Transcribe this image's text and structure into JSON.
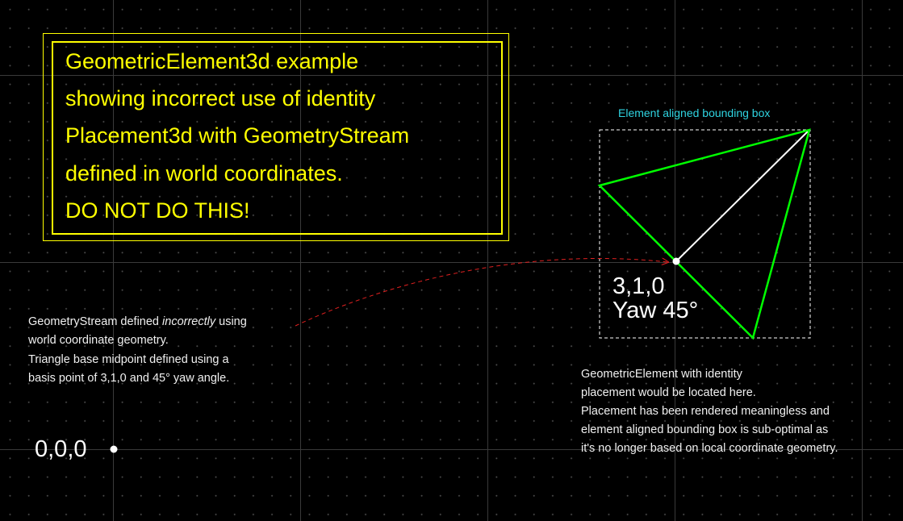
{
  "title": {
    "lines": [
      "GeometricElement3d example",
      "showing incorrect use of identity",
      "Placement3d with GeometryStream",
      "defined in world coordinates.",
      "DO NOT DO THIS!"
    ]
  },
  "bbox_caption": "Element aligned bounding box",
  "placement_label": {
    "coords": "3,1,0",
    "yaw": "Yaw 45°"
  },
  "origin_label": "0,0,0",
  "left_note": {
    "line1_pre": "GeometryStream defined ",
    "line1_em": "incorrectly",
    "line1_post": " using",
    "line2": "world coordinate geometry.",
    "line3": "Triangle base midpoint defined using a",
    "line4": "basis point of 3,1,0 and 45° yaw angle."
  },
  "right_note": {
    "lines": [
      "GeometricElement with identity",
      "placement would be located here.",
      "Placement has been rendered meaningless and",
      "element aligned bounding box is sub-optimal as",
      "it's no longer based on local coordinate geometry."
    ]
  },
  "colors": {
    "background": "#000000",
    "title": "#ffff00",
    "triangle": "#00ff00",
    "axis_line": "#ffffff",
    "bbox": "#ffffff",
    "bbox_caption": "#2fd3e0",
    "arrow": "#e02020",
    "note_text": "#f0f0f0"
  }
}
